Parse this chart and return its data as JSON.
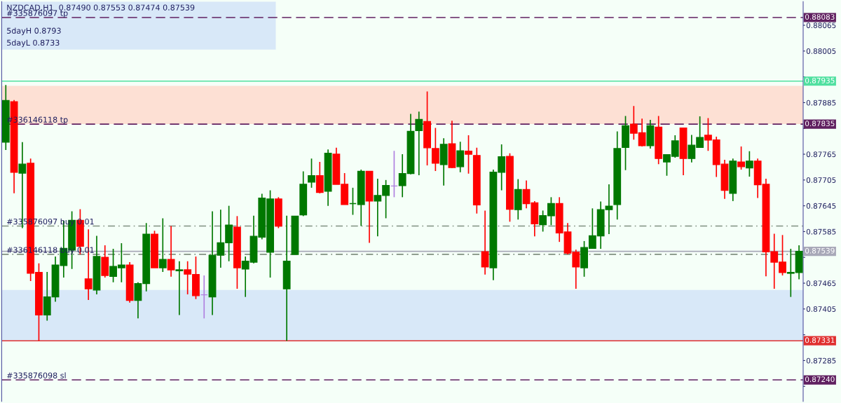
{
  "chart_data": {
    "type": "candlestick",
    "title": "NZDCAD,H1  0.87490 0.87553 0.87474 0.87539",
    "categories": [
      null,
      null,
      null,
      null,
      null,
      null,
      null,
      null,
      null,
      null,
      null,
      null,
      null,
      null,
      null,
      null,
      null,
      null,
      null,
      null,
      null,
      null,
      null,
      null,
      null,
      null,
      null,
      null,
      null,
      null,
      null,
      null,
      null,
      null,
      null,
      null,
      null,
      null,
      null,
      null,
      null,
      null,
      null,
      null,
      null,
      null,
      null,
      null,
      null,
      null,
      null,
      null,
      null,
      null,
      null,
      null,
      null,
      null,
      null,
      null,
      null,
      null,
      null,
      null,
      null,
      null,
      null,
      null,
      null,
      null,
      null,
      null,
      null,
      null,
      null,
      null,
      null,
      null,
      null,
      null,
      null,
      null,
      null,
      null,
      null,
      null,
      null,
      null,
      null,
      null,
      null,
      null,
      null,
      null,
      null,
      null,
      null
    ],
    "ohlc": [
      [
        0.87793,
        0.87926,
        0.87775,
        0.8789
      ],
      [
        0.87887,
        0.87891,
        0.87674,
        0.87723
      ],
      [
        0.87721,
        0.87793,
        0.87593,
        0.87742
      ],
      [
        0.87744,
        0.87755,
        0.8747,
        0.87488
      ],
      [
        0.8749,
        0.87511,
        0.87331,
        0.87391
      ],
      [
        0.87391,
        0.87491,
        0.87378,
        0.87433
      ],
      [
        0.87433,
        0.87527,
        0.87422,
        0.87507
      ],
      [
        0.87506,
        0.8761,
        0.87478,
        0.87546
      ],
      [
        0.87542,
        0.87632,
        0.87498,
        0.87611
      ],
      [
        0.87611,
        0.87637,
        0.87532,
        0.87551
      ],
      [
        0.87475,
        0.8759,
        0.87426,
        0.87452
      ],
      [
        0.87449,
        0.87575,
        0.87439,
        0.87527
      ],
      [
        0.87525,
        0.87553,
        0.87478,
        0.87483
      ],
      [
        0.87481,
        0.87545,
        0.87467,
        0.87504
      ],
      [
        0.87501,
        0.87558,
        0.87467,
        0.87507
      ],
      [
        0.87507,
        0.87514,
        0.8742,
        0.87425
      ],
      [
        0.87425,
        0.87467,
        0.87383,
        0.87464
      ],
      [
        0.87464,
        0.87605,
        0.87446,
        0.87579
      ],
      [
        0.87579,
        0.87587,
        0.87501,
        0.87501
      ],
      [
        0.87501,
        0.87616,
        0.87491,
        0.8752
      ],
      [
        0.8752,
        0.87598,
        0.8748,
        0.87496
      ],
      [
        0.87494,
        0.87516,
        0.87391,
        0.87496
      ],
      [
        0.87496,
        0.87516,
        0.87439,
        0.87486
      ],
      [
        0.87485,
        0.87527,
        0.87428,
        0.87436
      ],
      [
        0.87438,
        0.87483,
        0.87383,
        0.87438
      ],
      [
        0.87433,
        0.87632,
        0.87391,
        0.8753
      ],
      [
        0.8753,
        0.87636,
        0.87501,
        0.87559
      ],
      [
        0.87559,
        0.87645,
        0.87516,
        0.876
      ],
      [
        0.87595,
        0.87621,
        0.87452,
        0.87501
      ],
      [
        0.87498,
        0.87527,
        0.87433,
        0.87516
      ],
      [
        0.87514,
        0.87622,
        0.87511,
        0.87574
      ],
      [
        0.87572,
        0.87673,
        0.87567,
        0.87663
      ],
      [
        0.87537,
        0.87681,
        0.87478,
        0.87661
      ],
      [
        0.87661,
        0.87665,
        0.87593,
        0.87598
      ],
      [
        0.87452,
        0.87622,
        0.87331,
        0.87516
      ],
      [
        0.87532,
        0.87621,
        0.87532,
        0.87621
      ],
      [
        0.87624,
        0.87725,
        0.87621,
        0.87695
      ],
      [
        0.877,
        0.87755,
        0.87687,
        0.87715
      ],
      [
        0.87715,
        0.87747,
        0.87674,
        0.87676
      ],
      [
        0.87679,
        0.87776,
        0.87645,
        0.87767
      ],
      [
        0.87765,
        0.8778,
        0.87695,
        0.87695
      ],
      [
        0.87695,
        0.87721,
        0.87648,
        0.87648
      ],
      [
        0.8765,
        0.87687,
        0.87624,
        0.8765
      ],
      [
        0.87648,
        0.87729,
        0.87598,
        0.87725
      ],
      [
        0.87725,
        0.87726,
        0.87559,
        0.87656
      ],
      [
        0.87656,
        0.87708,
        0.87574,
        0.87669
      ],
      [
        0.87669,
        0.87705,
        0.87616,
        0.87692
      ],
      [
        0.87691,
        0.87773,
        0.87665,
        0.87691
      ],
      [
        0.87692,
        0.87765,
        0.87665,
        0.8772
      ],
      [
        0.8772,
        0.87859,
        0.87718,
        0.87818
      ],
      [
        0.8782,
        0.87864,
        0.87716,
        0.87846
      ],
      [
        0.87841,
        0.87911,
        0.87739,
        0.8778
      ],
      [
        0.87778,
        0.87826,
        0.87726,
        0.87744
      ],
      [
        0.87741,
        0.87802,
        0.87692,
        0.87788
      ],
      [
        0.87789,
        0.87843,
        0.87733,
        0.87734
      ],
      [
        0.87736,
        0.87794,
        0.87723,
        0.87773
      ],
      [
        0.87772,
        0.87809,
        0.8772,
        0.87765
      ],
      [
        0.87762,
        0.8778,
        0.87627,
        0.87647
      ],
      [
        0.87538,
        0.87634,
        0.87485,
        0.87503
      ],
      [
        0.87501,
        0.87729,
        0.87472,
        0.87723
      ],
      [
        0.87723,
        0.87788,
        0.87681,
        0.87759
      ],
      [
        0.8776,
        0.87767,
        0.87608,
        0.87637
      ],
      [
        0.87636,
        0.87707,
        0.87613,
        0.87683
      ],
      [
        0.87683,
        0.87704,
        0.87639,
        0.8765
      ],
      [
        0.87652,
        0.87656,
        0.87574,
        0.87603
      ],
      [
        0.87601,
        0.87634,
        0.87585,
        0.87622
      ],
      [
        0.87622,
        0.87665,
        0.876,
        0.8765
      ],
      [
        0.8765,
        0.87665,
        0.87561,
        0.87582
      ],
      [
        0.87584,
        0.87605,
        0.87532,
        0.87535
      ],
      [
        0.87537,
        0.87543,
        0.87452,
        0.87503
      ],
      [
        0.87501,
        0.87563,
        0.8748,
        0.87548
      ],
      [
        0.87546,
        0.87639,
        0.87545,
        0.87575
      ],
      [
        0.87575,
        0.87655,
        0.87545,
        0.87636
      ],
      [
        0.87636,
        0.87695,
        0.87579,
        0.87644
      ],
      [
        0.87648,
        0.87818,
        0.87613,
        0.87778
      ],
      [
        0.87781,
        0.87854,
        0.87728,
        0.87831
      ],
      [
        0.87835,
        0.87877,
        0.87799,
        0.87814
      ],
      [
        0.87815,
        0.87848,
        0.87783,
        0.87785
      ],
      [
        0.87785,
        0.87845,
        0.87778,
        0.87831
      ],
      [
        0.87828,
        0.87854,
        0.87742,
        0.87755
      ],
      [
        0.87747,
        0.87765,
        0.87715,
        0.87764
      ],
      [
        0.8776,
        0.87809,
        0.87757,
        0.87796
      ],
      [
        0.87826,
        0.87826,
        0.87716,
        0.87755
      ],
      [
        0.87755,
        0.8781,
        0.87746,
        0.87786
      ],
      [
        0.87781,
        0.87853,
        0.8778,
        0.87804
      ],
      [
        0.87809,
        0.87849,
        0.87773,
        0.87798
      ],
      [
        0.87798,
        0.87806,
        0.87712,
        0.87741
      ],
      [
        0.87742,
        0.87752,
        0.87661,
        0.87681
      ],
      [
        0.87674,
        0.87755,
        0.87656,
        0.87749
      ],
      [
        0.87747,
        0.87783,
        0.87729,
        0.87736
      ],
      [
        0.87733,
        0.87772,
        0.87713,
        0.87749
      ],
      [
        0.87749,
        0.87755,
        0.87663,
        0.87694
      ],
      [
        0.87695,
        0.87708,
        0.87481,
        0.87538
      ],
      [
        0.87538,
        0.8758,
        0.87452,
        0.87514
      ],
      [
        0.87514,
        0.87577,
        0.87483,
        0.8749
      ],
      [
        0.87488,
        0.87545,
        0.87433,
        0.8749
      ],
      [
        0.8749,
        0.87553,
        0.87474,
        0.87539
      ]
    ],
    "colors": [
      "#007800",
      "#ff0000",
      "#007800",
      "#ff0000",
      "#ff0000",
      "#007800",
      "#007800",
      "#007800",
      "#007800",
      "#ff0000",
      "#ff0000",
      "#007800",
      "#ff0000",
      "#007800",
      "#007800",
      "#ff0000",
      "#007800",
      "#007800",
      "#ff0000",
      "#007800",
      "#ff0000",
      "#007800",
      "#ff0000",
      "#ff0000",
      "#b080e0",
      "#007800",
      "#007800",
      "#007800",
      "#ff0000",
      "#007800",
      "#007800",
      "#007800",
      "#007800",
      "#ff0000",
      "#007800",
      "#007800",
      "#007800",
      "#007800",
      "#ff0000",
      "#007800",
      "#ff0000",
      "#ff0000",
      "#007800",
      "#007800",
      "#ff0000",
      "#007800",
      "#007800",
      "#b080e0",
      "#007800",
      "#007800",
      "#007800",
      "#ff0000",
      "#ff0000",
      "#007800",
      "#ff0000",
      "#007800",
      "#ff0000",
      "#ff0000",
      "#ff0000",
      "#007800",
      "#007800",
      "#ff0000",
      "#007800",
      "#ff0000",
      "#ff0000",
      "#007800",
      "#007800",
      "#ff0000",
      "#ff0000",
      "#ff0000",
      "#007800",
      "#007800",
      "#007800",
      "#007800",
      "#007800",
      "#007800",
      "#ff0000",
      "#ff0000",
      "#007800",
      "#ff0000",
      "#007800",
      "#007800",
      "#ff0000",
      "#007800",
      "#007800",
      "#ff0000",
      "#ff0000",
      "#ff0000",
      "#007800",
      "#ff0000",
      "#007800",
      "#ff0000",
      "#ff0000",
      "#ff0000",
      "#ff0000",
      "#007800",
      "#007800"
    ],
    "ylim": [
      0.8719,
      0.8812
    ],
    "yticks": [
      0.88065,
      0.88005,
      {
        "value": 0.87945,
        "label": null
      },
      0.87885,
      {
        "value": 0.87825,
        "label": null
      },
      0.87765,
      0.87705,
      0.87645,
      0.87585,
      {
        "value": 0.87525,
        "label": null
      },
      0.87465,
      0.87405,
      {
        "value": 0.87345,
        "label": null
      },
      0.87285,
      {
        "value": 0.87225,
        "label": null
      }
    ],
    "tick_labels": "y",
    "grid": false,
    "ref_lines": [
      {
        "axis": "y",
        "value": 0.88083,
        "label": "0.88083",
        "color": "#602060",
        "line_style": "dashed"
      },
      {
        "axis": "y",
        "value": 0.87935,
        "label": "0.87935",
        "color": "#50e0a0",
        "line_style": "solid"
      },
      {
        "axis": "y",
        "value": 0.87835,
        "label": "0.87835",
        "color": "#602060",
        "line_style": "dashed"
      },
      {
        "axis": "y",
        "value": 0.87598,
        "label": null,
        "color": "#809080",
        "line_style": "dashdot"
      },
      {
        "axis": "y",
        "value": 0.87539,
        "label": "0.87539",
        "color": "#a8a8b8",
        "line_style": "solid"
      },
      {
        "axis": "y",
        "value": 0.87532,
        "label": null,
        "color": "#809080",
        "line_style": "dashdot"
      },
      {
        "axis": "y",
        "value": 0.87331,
        "label": "0.87331",
        "color": "#e03030",
        "line_style": "solid"
      },
      {
        "axis": "y",
        "value": 0.8724,
        "label": "0.87240",
        "color": "#602060",
        "line_style": "dashed"
      }
    ],
    "bands": [
      {
        "axis": "y",
        "from": 0.87835,
        "to": 0.87924,
        "color": "#fde0d4"
      },
      {
        "axis": "y",
        "from": 0.87331,
        "to": 0.87449,
        "color": "#d8e8f8"
      }
    ],
    "annotations": [
      "5dayH 0.8793",
      "5dayL 0.8733",
      {
        "text": "#335876097 tp",
        "y": 0.88083
      },
      {
        "text": "#336146118 tp",
        "y": 0.87835
      },
      {
        "text": "#335876097 buy 0.01",
        "y": 0.87598
      },
      {
        "text": "#336146118 buy 0.01",
        "y": 0.87532
      },
      {
        "text": "#335876098 sl",
        "y": 0.8724
      }
    ]
  }
}
